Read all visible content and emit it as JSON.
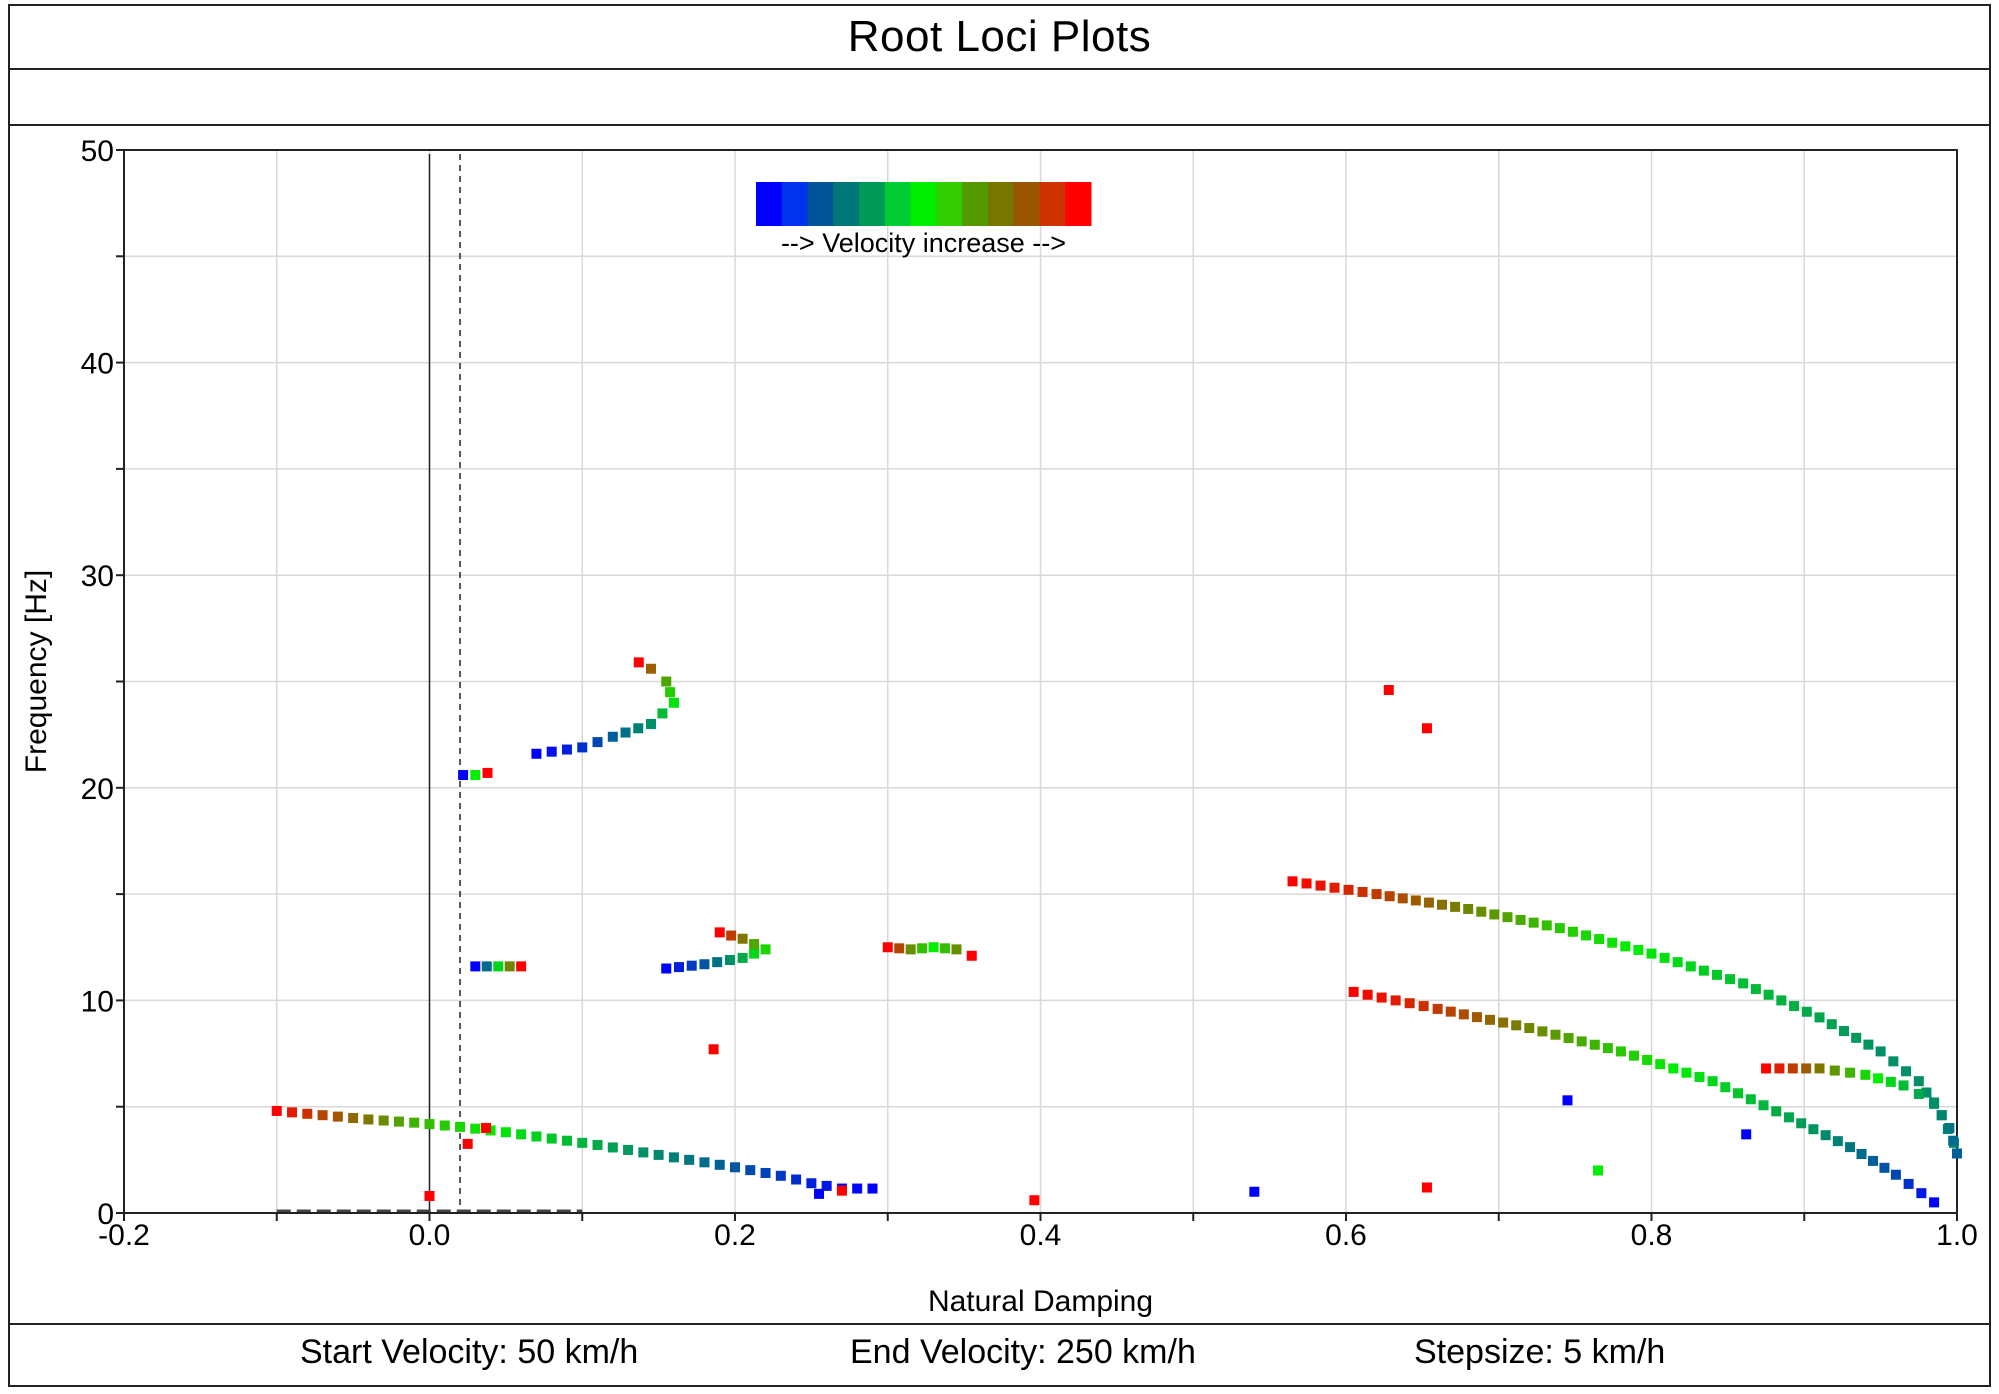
{
  "title": "Root Loci Plots",
  "footer": {
    "start": "Start Velocity: 50 km/h",
    "end": "End Velocity: 250 km/h",
    "step": "Stepsize: 5 km/h"
  },
  "legend": {
    "label": "--> Velocity increase -->",
    "colors": [
      "#0000ff",
      "#0033ee",
      "#005599",
      "#007777",
      "#009955",
      "#00cc33",
      "#00ee00",
      "#33cc00",
      "#559900",
      "#777700",
      "#995500",
      "#cc3300",
      "#ff0000"
    ]
  },
  "chart_data": {
    "type": "scatter",
    "title": "Root Loci Plots",
    "xlabel": "Natural Damping",
    "ylabel": "Frequency [Hz]",
    "xlim": [
      -0.2,
      1.0
    ],
    "ylim": [
      0,
      50
    ],
    "xticks": [
      "-0.2",
      "0.0",
      "0.2",
      "0.4",
      "0.6",
      "0.8",
      "1.0"
    ],
    "yticks": [
      "0",
      "10",
      "20",
      "30",
      "40",
      "50"
    ],
    "grid": true,
    "color_scale": "velocity (blue = low, green = mid, red = high)",
    "reference_lines": [
      {
        "x": 0.0,
        "style": "solid"
      },
      {
        "x": 0.02,
        "style": "dashed"
      }
    ],
    "series": [
      {
        "points": [
          [
            -0.1,
            4.8,
            1
          ],
          [
            -0.07,
            4.6,
            0.85
          ],
          [
            -0.04,
            4.4,
            0.75
          ],
          [
            -0.01,
            4.25,
            0.62
          ],
          [
            0.02,
            4.05,
            0.55
          ],
          [
            0.05,
            3.8,
            0.48
          ],
          [
            0.08,
            3.5,
            0.42
          ],
          [
            0.11,
            3.2,
            0.36
          ],
          [
            0.14,
            2.85,
            0.3
          ],
          [
            0.17,
            2.5,
            0.25
          ],
          [
            0.2,
            2.15,
            0.18
          ],
          [
            0.23,
            1.75,
            0.12
          ],
          [
            0.25,
            1.4,
            0.07
          ],
          [
            0.27,
            1.15,
            0.03
          ],
          [
            0.29,
            1.15,
            0
          ]
        ]
      },
      {
        "points": [
          [
            0.07,
            21.6,
            0
          ],
          [
            0.1,
            21.9,
            0.1
          ],
          [
            0.12,
            22.4,
            0.2
          ],
          [
            0.145,
            23.0,
            0.3
          ],
          [
            0.16,
            24.0,
            0.48
          ],
          [
            0.155,
            25.0,
            0.65
          ],
          [
            0.145,
            25.6,
            0.8
          ],
          [
            0.137,
            25.9,
            1
          ]
        ]
      },
      {
        "points": [
          [
            0.022,
            20.6,
            0
          ],
          [
            0.03,
            20.6,
            0.5
          ],
          [
            0.038,
            20.7,
            1
          ]
        ]
      },
      {
        "points": [
          [
            0.03,
            11.6,
            0
          ],
          [
            0.045,
            11.6,
            0.45
          ],
          [
            0.06,
            11.6,
            1
          ]
        ]
      },
      {
        "points": [
          [
            0.155,
            11.5,
            0
          ],
          [
            0.18,
            11.7,
            0.18
          ],
          [
            0.205,
            12.0,
            0.36
          ],
          [
            0.22,
            12.4,
            0.55
          ],
          [
            0.205,
            12.9,
            0.75
          ],
          [
            0.19,
            13.2,
            1
          ]
        ]
      },
      {
        "points": [
          [
            0.3,
            12.5,
            1
          ],
          [
            0.315,
            12.4,
            0.7
          ],
          [
            0.33,
            12.5,
            0.5
          ],
          [
            0.345,
            12.4,
            0.7
          ],
          [
            0.355,
            12.1,
            1
          ]
        ]
      },
      {
        "points": [
          [
            0.565,
            15.6,
            1
          ],
          [
            0.62,
            15.0,
            0.88
          ],
          [
            0.68,
            14.3,
            0.72
          ],
          [
            0.74,
            13.4,
            0.58
          ],
          [
            0.8,
            12.2,
            0.48
          ],
          [
            0.86,
            10.8,
            0.4
          ],
          [
            0.91,
            9.2,
            0.35
          ],
          [
            0.95,
            7.6,
            0.3
          ],
          [
            0.975,
            6.2,
            0.3
          ],
          [
            0.99,
            4.6,
            0.3
          ],
          [
            0.998,
            3.3,
            0.28
          ]
        ]
      },
      {
        "points": [
          [
            0.605,
            10.4,
            1
          ],
          [
            0.66,
            9.6,
            0.88
          ],
          [
            0.72,
            8.7,
            0.72
          ],
          [
            0.78,
            7.6,
            0.58
          ],
          [
            0.84,
            6.2,
            0.45
          ],
          [
            0.89,
            4.5,
            0.35
          ],
          [
            0.93,
            3.1,
            0.25
          ],
          [
            0.96,
            1.8,
            0.15
          ],
          [
            0.985,
            0.5,
            0
          ]
        ]
      },
      {
        "points": [
          [
            0.875,
            6.8,
            1
          ],
          [
            0.91,
            6.8,
            0.75
          ],
          [
            0.94,
            6.5,
            0.55
          ],
          [
            0.965,
            6.0,
            0.4
          ],
          [
            0.985,
            5.2,
            0.3
          ],
          [
            0.995,
            4.0,
            0.25
          ],
          [
            1.0,
            2.8,
            0.2
          ]
        ]
      },
      {
        "points": [
          [
            0.0,
            0.8,
            1
          ],
          [
            0.025,
            3.25,
            1
          ],
          [
            0.037,
            4.0,
            1
          ],
          [
            0.186,
            7.7,
            1
          ],
          [
            0.396,
            0.6,
            1
          ],
          [
            0.54,
            1.0,
            0
          ],
          [
            0.628,
            24.6,
            1
          ],
          [
            0.653,
            22.8,
            1
          ],
          [
            0.653,
            1.2,
            1
          ],
          [
            0.745,
            5.3,
            0
          ],
          [
            0.765,
            2.0,
            0.5
          ],
          [
            0.862,
            3.7,
            0
          ],
          [
            0.27,
            1.05,
            1
          ],
          [
            0.255,
            0.9,
            0
          ]
        ]
      }
    ]
  }
}
